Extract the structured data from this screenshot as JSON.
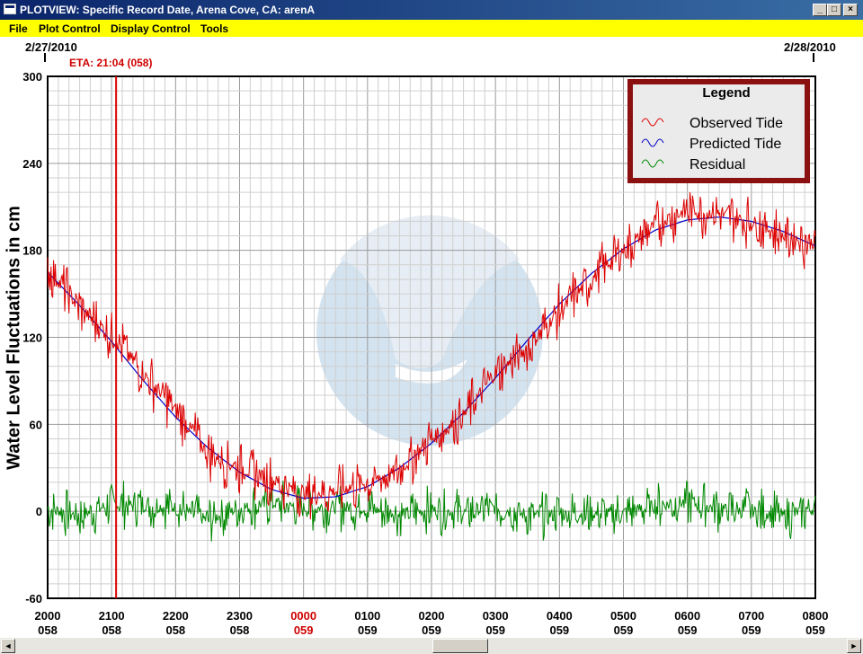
{
  "window": {
    "title": "PLOTVIEW: Specific Record Date, Arena Cove, CA: arenA",
    "minimize_glyph": "_",
    "maximize_glyph": "□",
    "close_glyph": "×"
  },
  "menu": {
    "items": [
      "File",
      "Plot Control",
      "Display Control",
      "Tools"
    ]
  },
  "dates": {
    "left": "2/27/2010",
    "right": "2/28/2010"
  },
  "eta": "ETA: 21:04 (058)",
  "scrollbar": {
    "left_arrow": "◄",
    "right_arrow": "►"
  },
  "colors": {
    "observed": "#dd0000",
    "predicted": "#0000cc",
    "residual": "#008800",
    "eta_line": "#dd0000",
    "legend_border": "#8b1010",
    "menubar": "#ffff00",
    "highlight_tick": "#d00000"
  },
  "chart_data": {
    "type": "line",
    "ylabel": "Water Level Fluctuations in cm",
    "ylim": [
      -60,
      300
    ],
    "yticks": [
      -60,
      0,
      60,
      120,
      180,
      240,
      300
    ],
    "xlim": [
      0,
      12
    ],
    "xtick_labels": [
      {
        "time": "2000",
        "day": "058",
        "highlight": false
      },
      {
        "time": "2100",
        "day": "058",
        "highlight": false
      },
      {
        "time": "2200",
        "day": "058",
        "highlight": false
      },
      {
        "time": "2300",
        "day": "058",
        "highlight": false
      },
      {
        "time": "0000",
        "day": "059",
        "highlight": true
      },
      {
        "time": "0100",
        "day": "059",
        "highlight": false
      },
      {
        "time": "0200",
        "day": "059",
        "highlight": false
      },
      {
        "time": "0300",
        "day": "059",
        "highlight": false
      },
      {
        "time": "0400",
        "day": "059",
        "highlight": false
      },
      {
        "time": "0500",
        "day": "059",
        "highlight": false
      },
      {
        "time": "0600",
        "day": "059",
        "highlight": false
      },
      {
        "time": "0700",
        "day": "059",
        "highlight": false
      },
      {
        "time": "0800",
        "day": "059",
        "highlight": false
      }
    ],
    "eta_x": 1.07,
    "grid": true,
    "legend": {
      "title": "Legend",
      "position": "top-right",
      "entries": [
        "Observed Tide",
        "Predicted Tide",
        "Residual"
      ]
    },
    "series": [
      {
        "name": "Predicted Tide",
        "x": [
          0,
          0.5,
          1,
          1.5,
          2,
          2.5,
          3,
          3.5,
          4,
          4.5,
          5,
          5.5,
          6,
          6.5,
          7,
          7.5,
          8,
          8.5,
          9,
          9.5,
          10,
          10.5,
          11,
          11.5,
          12
        ],
        "values": [
          165,
          142,
          117,
          90,
          65,
          44,
          27,
          15,
          9,
          10,
          17,
          30,
          47,
          68,
          92,
          118,
          143,
          164,
          181,
          194,
          201,
          203,
          200,
          193,
          183
        ]
      },
      {
        "name": "Observed Tide",
        "x": [
          0,
          0.5,
          1,
          1.5,
          2,
          2.5,
          3,
          3.5,
          4,
          4.5,
          5,
          5.5,
          6,
          6.5,
          7,
          7.5,
          8,
          8.5,
          9,
          9.5,
          10,
          10.5,
          11,
          11.5,
          12
        ],
        "values": [
          168,
          140,
          122,
          95,
          70,
          40,
          30,
          22,
          12,
          14,
          20,
          28,
          50,
          66,
          95,
          112,
          138,
          160,
          180,
          198,
          208,
          205,
          200,
          190,
          185
        ]
      },
      {
        "name": "Residual",
        "x": [
          0,
          0.5,
          1,
          1.5,
          2,
          2.5,
          3,
          3.5,
          4,
          4.5,
          5,
          5.5,
          6,
          6.5,
          7,
          7.5,
          8,
          8.5,
          9,
          9.5,
          10,
          10.5,
          11,
          11.5,
          12
        ],
        "values": [
          2,
          -3,
          5,
          4,
          3,
          -6,
          2,
          6,
          2,
          3,
          2,
          -2,
          1,
          -1,
          3,
          -3,
          -2,
          -2,
          -1,
          4,
          6,
          2,
          0,
          -3,
          2
        ]
      }
    ]
  }
}
